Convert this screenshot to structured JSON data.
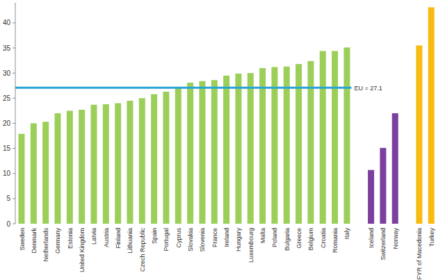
{
  "chart_data": {
    "type": "bar",
    "categories": [
      "Sweden",
      "Denmark",
      "Netherlands",
      "Germany",
      "Estonia",
      "United Kingdom",
      "Latvia",
      "Austria",
      "Finland",
      "Lithuania",
      "Czech Republic",
      "Spain",
      "Portugal",
      "Cyprus",
      "Slovakia",
      "Slovenia",
      "France",
      "Ireland",
      "Hungary",
      "Luxembourg",
      "Malta",
      "Poland",
      "Bulgaria",
      "Greece",
      "Belgium",
      "Croatia",
      "Romania",
      "Italy",
      null,
      "Iceland",
      "Switzerland",
      "Norway",
      null,
      "FYR of Macedonia",
      "Turkey"
    ],
    "values": [
      17.9,
      20.0,
      20.3,
      22.0,
      22.5,
      22.7,
      23.7,
      23.8,
      24.0,
      24.5,
      25.0,
      25.8,
      26.3,
      27.0,
      28.1,
      28.4,
      28.6,
      29.5,
      29.9,
      30.0,
      31.0,
      31.2,
      31.3,
      31.8,
      32.4,
      34.4,
      34.4,
      35.1,
      null,
      10.7,
      15.1,
      22.0,
      null,
      35.5,
      43.1
    ],
    "colors": [
      "#9bcf5a",
      "#9bcf5a",
      "#9bcf5a",
      "#9bcf5a",
      "#9bcf5a",
      "#9bcf5a",
      "#9bcf5a",
      "#9bcf5a",
      "#9bcf5a",
      "#9bcf5a",
      "#9bcf5a",
      "#9bcf5a",
      "#9bcf5a",
      "#9bcf5a",
      "#9bcf5a",
      "#9bcf5a",
      "#9bcf5a",
      "#9bcf5a",
      "#9bcf5a",
      "#9bcf5a",
      "#9bcf5a",
      "#9bcf5a",
      "#9bcf5a",
      "#9bcf5a",
      "#9bcf5a",
      "#9bcf5a",
      "#9bcf5a",
      "#9bcf5a",
      null,
      "#7b3f9e",
      "#7b3f9e",
      "#7b3f9e",
      null,
      "#f7bb12",
      "#f7bb12"
    ],
    "ylim": [
      0,
      44
    ],
    "yticks": [
      0,
      5,
      10,
      15,
      20,
      25,
      30,
      35,
      40
    ],
    "grid": false,
    "reference_line": {
      "label": "EU = 27.1",
      "value": 27.1,
      "color": "#2aa3d6"
    }
  }
}
